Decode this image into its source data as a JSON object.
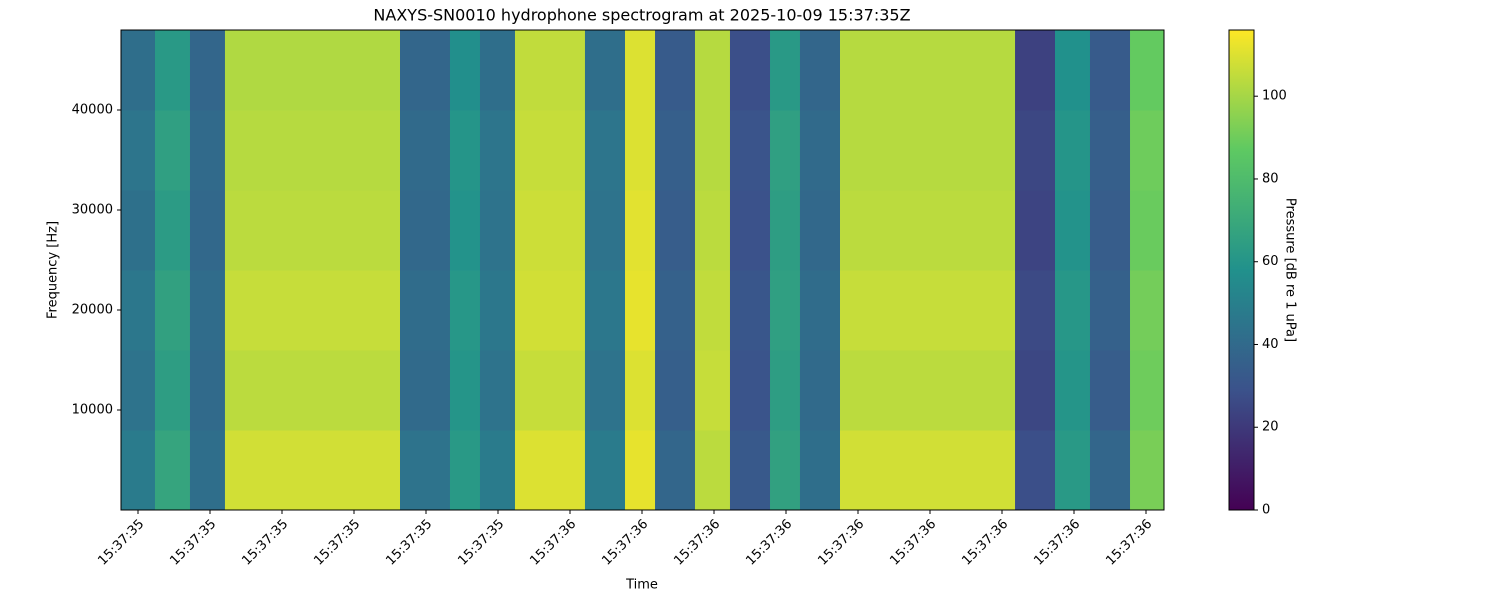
{
  "chart_data": {
    "type": "heatmap",
    "title": "NAXYS-SN0010 hydrophone spectrogram at 2025-10-09 15:37:35Z",
    "xlabel": "Time",
    "ylabel": "Frequency [Hz]",
    "colorbar_label": "Pressure [dB re 1 uPa]",
    "colormap": "viridis",
    "x_edges": [
      -0.236,
      0.236,
      0.722,
      1.208,
      3.639,
      4.333,
      4.75,
      5.236,
      6.208,
      6.764,
      7.181,
      7.736,
      8.222,
      8.778,
      9.194,
      9.75,
      12.181,
      12.736,
      13.222,
      13.778,
      14.25
    ],
    "y_edges": [
      0,
      8000,
      16000,
      24000,
      32000,
      40000,
      48000
    ],
    "z": [
      [
        48,
        68,
        42,
        108,
        44,
        62,
        48,
        110,
        48,
        112,
        38,
        104,
        32,
        66,
        42,
        108,
        28,
        62,
        38,
        92
      ],
      [
        44,
        64,
        40,
        104,
        40,
        60,
        44,
        106,
        44,
        110,
        35,
        106,
        30,
        64,
        40,
        104,
        25,
        60,
        34,
        90
      ],
      [
        46,
        66,
        41,
        106,
        41,
        61,
        46,
        108,
        46,
        112,
        36,
        105,
        31,
        65,
        41,
        106,
        26,
        61,
        36,
        91
      ],
      [
        43,
        63,
        39,
        104,
        39,
        59,
        44,
        107,
        44,
        111,
        34,
        104,
        29,
        64,
        39,
        104,
        24,
        59,
        34,
        89
      ],
      [
        45,
        65,
        40,
        103,
        40,
        60,
        45,
        106,
        45,
        110,
        35,
        103,
        30,
        65,
        40,
        103,
        25,
        60,
        35,
        90
      ],
      [
        42,
        62,
        38,
        102,
        38,
        57,
        42,
        105,
        42,
        110,
        33,
        103,
        28,
        62,
        38,
        103,
        23,
        58,
        33,
        88
      ]
    ],
    "xlim": [
      -0.236,
      14.25
    ],
    "xticks": [
      {
        "value": 0,
        "label": "15:37:35"
      },
      {
        "value": 1,
        "label": "15:37:35"
      },
      {
        "value": 2,
        "label": "15:37:35"
      },
      {
        "value": 3,
        "label": "15:37:35"
      },
      {
        "value": 4,
        "label": "15:37:35"
      },
      {
        "value": 5,
        "label": "15:37:35"
      },
      {
        "value": 6,
        "label": "15:37:36"
      },
      {
        "value": 7,
        "label": "15:37:36"
      },
      {
        "value": 8,
        "label": "15:37:36"
      },
      {
        "value": 9,
        "label": "15:37:36"
      },
      {
        "value": 10,
        "label": "15:37:36"
      },
      {
        "value": 11,
        "label": "15:37:36"
      },
      {
        "value": 12,
        "label": "15:37:36"
      },
      {
        "value": 13,
        "label": "15:37:36"
      },
      {
        "value": 14,
        "label": "15:37:36"
      }
    ],
    "ylim": [
      0,
      48000
    ],
    "yticks": [
      10000,
      20000,
      30000,
      40000
    ],
    "clim": [
      0,
      116
    ],
    "cticks": [
      0,
      20,
      40,
      60,
      80,
      100
    ]
  }
}
